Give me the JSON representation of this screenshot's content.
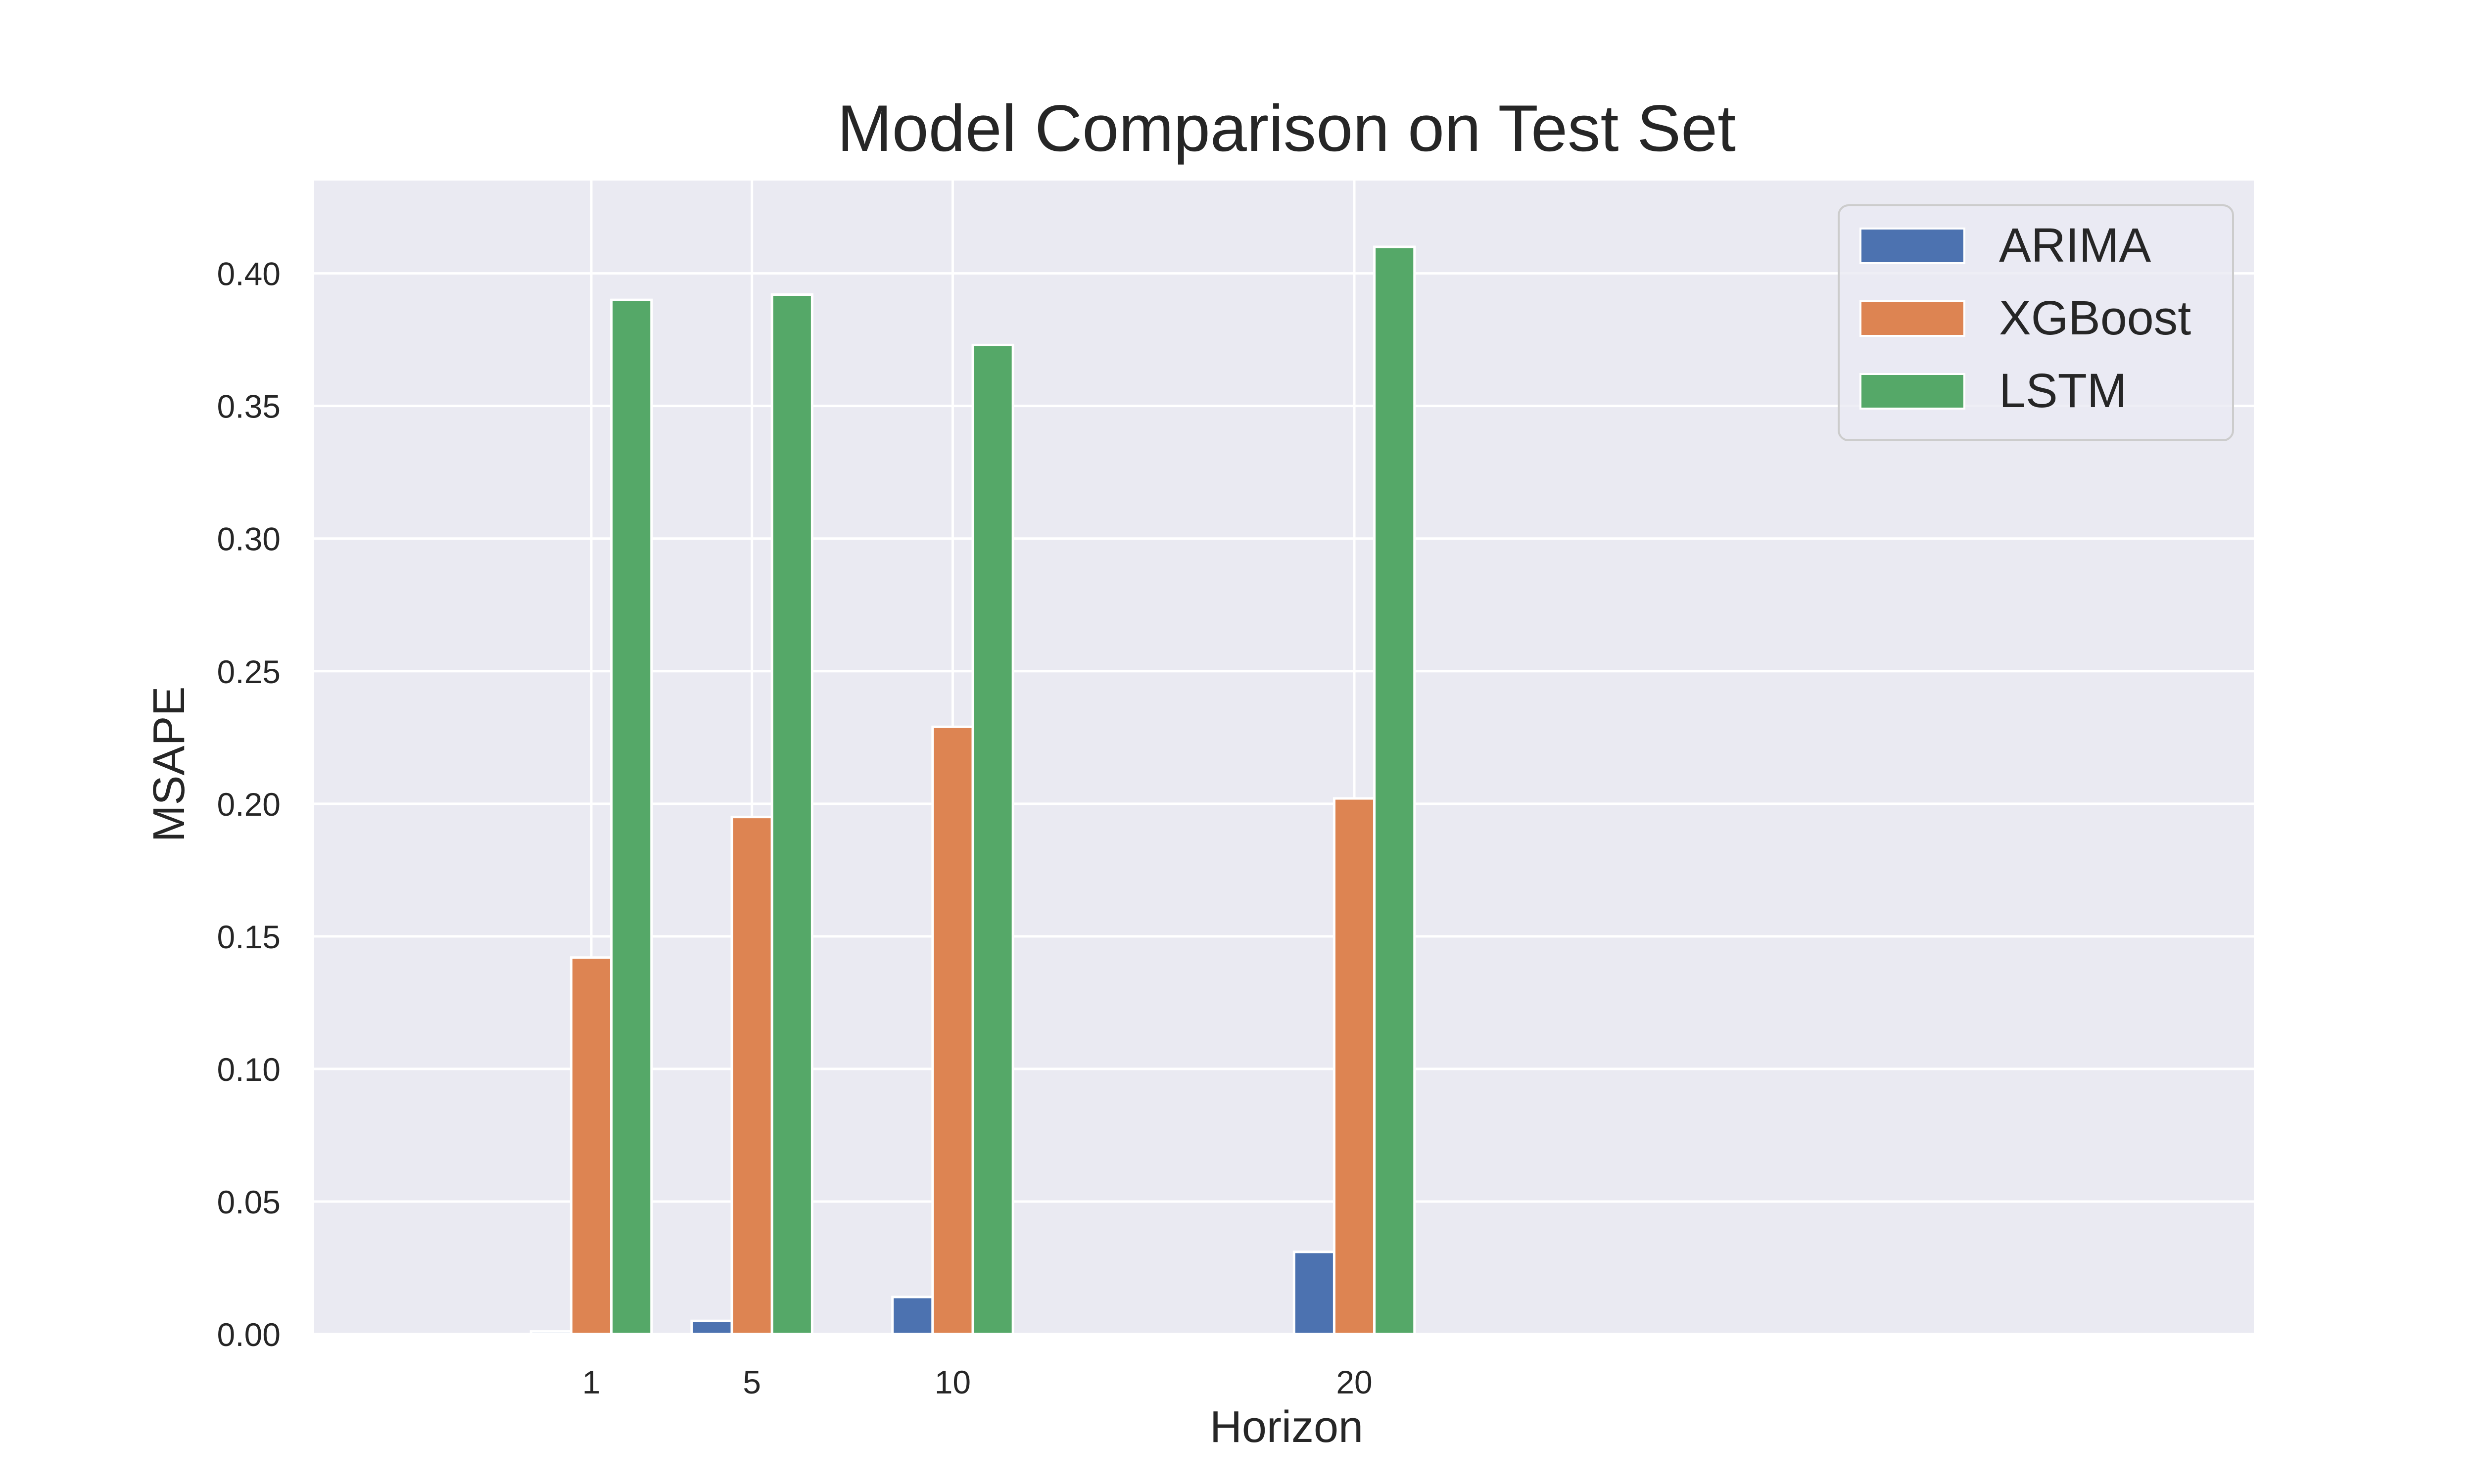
{
  "colors": {
    "background": "#ffffff",
    "plot_background": "#eaeaf2",
    "grid": "#ffffff",
    "text": "#262626",
    "legend_frame": "#cccccc"
  },
  "chart_data": {
    "type": "bar",
    "title": "Model Comparison on Test Set",
    "xlabel": "Horizon",
    "ylabel": "MSAPE",
    "x": [
      1,
      5,
      10,
      20
    ],
    "x_tick_labels": [
      "1",
      "5",
      "10",
      "20"
    ],
    "xlim": [
      -5.9,
      42.4
    ],
    "ylim": [
      0,
      0.435
    ],
    "y_ticks": [
      0.0,
      0.05,
      0.1,
      0.15,
      0.2,
      0.25,
      0.3,
      0.35,
      0.4
    ],
    "y_tick_labels": [
      "0.00",
      "0.05",
      "0.10",
      "0.15",
      "0.20",
      "0.25",
      "0.30",
      "0.35",
      "0.40"
    ],
    "grid": true,
    "legend_position": "top-right",
    "series": [
      {
        "name": "ARIMA",
        "color": "#4c72b0",
        "values": [
          0.001,
          0.005,
          0.014,
          0.031
        ]
      },
      {
        "name": "XGBoost",
        "color": "#dd8452",
        "values": [
          0.142,
          0.195,
          0.229,
          0.202
        ]
      },
      {
        "name": "LSTM",
        "color": "#55a868",
        "values": [
          0.39,
          0.392,
          0.373,
          0.41
        ]
      }
    ]
  }
}
